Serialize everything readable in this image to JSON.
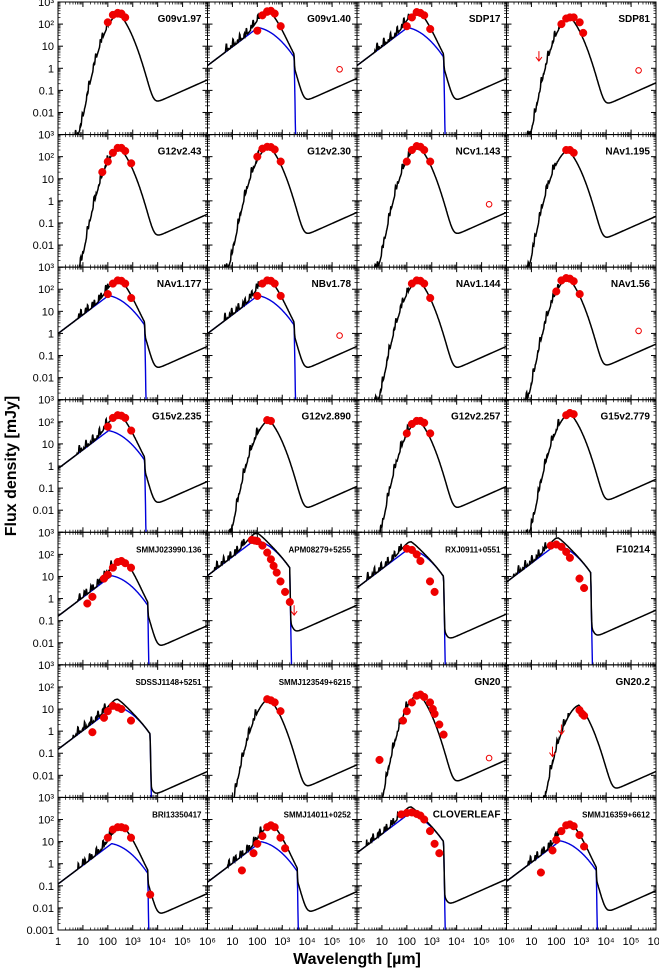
{
  "chart_data": {
    "type": "scatter",
    "layout": "7x4 grid of SED panels, log-log axes, shared axes",
    "xlabel": "Wavelength [µm]",
    "ylabel": "Flux density [mJy]",
    "xscale": "log",
    "yscale": "log",
    "xlim": [
      1,
      1000000
    ],
    "ylim": [
      0.001,
      1000
    ],
    "x_tick_labels": [
      "1",
      "10",
      "100",
      "10³",
      "10⁴",
      "10⁵",
      "10⁶"
    ],
    "y_tick_labels": [
      "0.001",
      "0.01",
      "0.1",
      "1",
      "10",
      "10²",
      "10³"
    ],
    "colors": {
      "model": "#000000",
      "agn": "#0000dd",
      "data": "#ee0000"
    },
    "panels": [
      {
        "name": "G09v1.97",
        "agn": false,
        "peak": [
          280,
          300
        ],
        "obs": [
          [
            100,
            120
          ],
          [
            160,
            260
          ],
          [
            250,
            300
          ],
          [
            350,
            280
          ],
          [
            500,
            200
          ],
          [
            250,
            320
          ],
          [
            350,
            300
          ]
        ],
        "open": [],
        "limits": []
      },
      {
        "name": "G09v1.40",
        "agn": true,
        "peak": [
          300,
          350
        ],
        "obs": [
          [
            100,
            50
          ],
          [
            160,
            250
          ],
          [
            250,
            380
          ],
          [
            350,
            400
          ],
          [
            500,
            300
          ],
          [
            870,
            80
          ],
          [
            250,
            360
          ]
        ],
        "open": [
          [
            200000,
            0.9
          ]
        ],
        "limits": []
      },
      {
        "name": "SDP17",
        "agn": true,
        "peak": [
          300,
          350
        ],
        "obs": [
          [
            100,
            80
          ],
          [
            160,
            200
          ],
          [
            250,
            350
          ],
          [
            350,
            320
          ],
          [
            500,
            250
          ],
          [
            870,
            60
          ]
        ],
        "open": [],
        "limits": []
      },
      {
        "name": "SDP81",
        "agn": false,
        "peak": [
          350,
          220
        ],
        "obs": [
          [
            160,
            100
          ],
          [
            250,
            180
          ],
          [
            350,
            200
          ],
          [
            500,
            200
          ],
          [
            870,
            120
          ],
          [
            1200,
            40
          ]
        ],
        "open": [
          [
            200000,
            0.8
          ]
        ],
        "limits": [
          [
            20,
            6
          ]
        ]
      },
      {
        "name": "G12v2.43",
        "agn": false,
        "peak": [
          300,
          250
        ],
        "obs": [
          [
            60,
            20
          ],
          [
            100,
            60
          ],
          [
            160,
            150
          ],
          [
            250,
            250
          ],
          [
            350,
            250
          ],
          [
            500,
            180
          ],
          [
            870,
            50
          ]
        ],
        "open": [],
        "limits": []
      },
      {
        "name": "G12v2.30",
        "agn": false,
        "peak": [
          300,
          300
        ],
        "obs": [
          [
            100,
            100
          ],
          [
            160,
            230
          ],
          [
            250,
            280
          ],
          [
            350,
            270
          ],
          [
            500,
            210
          ],
          [
            870,
            60
          ]
        ],
        "open": [],
        "limits": []
      },
      {
        "name": "NCv1.143",
        "agn": false,
        "peak": [
          300,
          300
        ],
        "obs": [
          [
            100,
            60
          ],
          [
            160,
            200
          ],
          [
            250,
            300
          ],
          [
            350,
            280
          ],
          [
            500,
            200
          ],
          [
            870,
            60
          ]
        ],
        "open": [
          [
            200000,
            0.7
          ]
        ],
        "limits": []
      },
      {
        "name": "NAv1.195",
        "agn": false,
        "peak": [
          300,
          200
        ],
        "obs": [
          [
            250,
            200
          ],
          [
            350,
            200
          ],
          [
            500,
            150
          ]
        ],
        "open": [],
        "limits": []
      },
      {
        "name": "NAv1.177",
        "agn": true,
        "peak": [
          300,
          260
        ],
        "obs": [
          [
            100,
            60
          ],
          [
            160,
            180
          ],
          [
            250,
            250
          ],
          [
            350,
            240
          ],
          [
            500,
            180
          ],
          [
            870,
            40
          ]
        ],
        "open": [],
        "limits": []
      },
      {
        "name": "NBv1.78",
        "agn": true,
        "peak": [
          300,
          260
        ],
        "obs": [
          [
            100,
            50
          ],
          [
            160,
            180
          ],
          [
            250,
            250
          ],
          [
            350,
            240
          ],
          [
            500,
            180
          ],
          [
            870,
            50
          ]
        ],
        "open": [
          [
            200000,
            0.8
          ]
        ],
        "limits": []
      },
      {
        "name": "NAv1.144",
        "agn": false,
        "peak": [
          300,
          260
        ],
        "obs": [
          [
            160,
            180
          ],
          [
            250,
            250
          ],
          [
            350,
            240
          ],
          [
            500,
            180
          ],
          [
            870,
            40
          ]
        ],
        "open": [],
        "limits": []
      },
      {
        "name": "NAv1.56",
        "agn": false,
        "peak": [
          300,
          330
        ],
        "obs": [
          [
            100,
            80
          ],
          [
            160,
            250
          ],
          [
            250,
            320
          ],
          [
            350,
            300
          ],
          [
            500,
            230
          ],
          [
            870,
            60
          ]
        ],
        "open": [
          [
            200000,
            1.3
          ]
        ],
        "limits": []
      },
      {
        "name": "G15v2.235",
        "agn": true,
        "peak": [
          300,
          200
        ],
        "obs": [
          [
            100,
            60
          ],
          [
            160,
            150
          ],
          [
            250,
            200
          ],
          [
            350,
            190
          ],
          [
            500,
            150
          ],
          [
            870,
            40
          ]
        ],
        "open": [],
        "limits": []
      },
      {
        "name": "G12v2.890",
        "agn": false,
        "peak": [
          300,
          120
        ],
        "obs": [
          [
            250,
            120
          ],
          [
            350,
            110
          ]
        ],
        "open": [],
        "limits": []
      },
      {
        "name": "G12v2.257",
        "agn": false,
        "peak": [
          300,
          120
        ],
        "obs": [
          [
            100,
            30
          ],
          [
            160,
            80
          ],
          [
            250,
            110
          ],
          [
            350,
            110
          ],
          [
            500,
            90
          ],
          [
            870,
            30
          ]
        ],
        "open": [],
        "limits": []
      },
      {
        "name": "G15v2.779",
        "agn": false,
        "peak": [
          350,
          250
        ],
        "obs": [
          [
            250,
            200
          ],
          [
            350,
            250
          ],
          [
            500,
            220
          ]
        ],
        "open": [],
        "limits": []
      },
      {
        "name": "SMMJ023990.136",
        "agn": true,
        "peak": [
          400,
          60
        ],
        "obs": [
          [
            15,
            0.6
          ],
          [
            24,
            1.2
          ],
          [
            70,
            8
          ],
          [
            100,
            12
          ],
          [
            160,
            25
          ],
          [
            250,
            45
          ],
          [
            350,
            50
          ],
          [
            500,
            40
          ],
          [
            850,
            25
          ]
        ],
        "open": [],
        "limits": []
      },
      {
        "name": "APM08279+5255",
        "agn": true,
        "peak": [
          100,
          500
        ],
        "obs": [
          [
            60,
            450
          ],
          [
            80,
            420
          ],
          [
            100,
            400
          ],
          [
            160,
            250
          ],
          [
            250,
            120
          ],
          [
            350,
            60
          ],
          [
            450,
            30
          ],
          [
            600,
            15
          ],
          [
            850,
            6
          ],
          [
            1300,
            2
          ],
          [
            2000,
            0.7
          ]
        ],
        "open": [],
        "limits": [
          [
            3000,
            0.5
          ]
        ]
      },
      {
        "name": "RXJ0911+0551",
        "agn": true,
        "peak": [
          150,
          200
        ],
        "obs": [
          [
            100,
            180
          ],
          [
            160,
            160
          ],
          [
            250,
            100
          ],
          [
            350,
            50
          ],
          [
            850,
            6
          ],
          [
            1300,
            2
          ]
        ],
        "open": [],
        "limits": []
      },
      {
        "name": "F10214",
        "agn": true,
        "peak": [
          120,
          300
        ],
        "obs": [
          [
            60,
            250
          ],
          [
            100,
            280
          ],
          [
            160,
            220
          ],
          [
            250,
            130
          ],
          [
            350,
            70
          ],
          [
            850,
            8
          ],
          [
            1300,
            3
          ]
        ],
        "open": [],
        "limits": []
      },
      {
        "name": "SDSSJ1148+5251",
        "agn": true,
        "peak": [
          250,
          15
        ],
        "obs": [
          [
            24,
            0.9
          ],
          [
            70,
            4
          ],
          [
            100,
            8
          ],
          [
            160,
            14
          ],
          [
            250,
            12
          ],
          [
            350,
            10
          ],
          [
            850,
            3
          ]
        ],
        "open": [],
        "limits": []
      },
      {
        "name": "SMMJ123549+6215",
        "agn": false,
        "peak": [
          300,
          30
        ],
        "obs": [
          [
            250,
            28
          ],
          [
            350,
            25
          ],
          [
            500,
            20
          ],
          [
            850,
            8
          ]
        ],
        "open": [],
        "limits": []
      },
      {
        "name": "GN20",
        "agn": false,
        "peak": [
          300,
          50
        ],
        "obs": [
          [
            8,
            0.05
          ],
          [
            70,
            3
          ],
          [
            100,
            8
          ],
          [
            160,
            20
          ],
          [
            250,
            40
          ],
          [
            350,
            45
          ],
          [
            500,
            35
          ],
          [
            850,
            20
          ],
          [
            1100,
            10
          ],
          [
            1300,
            6
          ],
          [
            2000,
            2
          ],
          [
            3000,
            0.7
          ]
        ],
        "open": [
          [
            200000,
            0.06
          ]
        ],
        "limits": []
      },
      {
        "name": "GN20.2",
        "agn": false,
        "peak": [
          800,
          15
        ],
        "obs": [
          [
            850,
            9
          ],
          [
            1100,
            6
          ],
          [
            1300,
            5
          ]
        ],
        "open": [],
        "limits": [
          [
            160,
            2
          ],
          [
            70,
            0.2
          ]
        ]
      },
      {
        "name": "BRI13350417",
        "agn": true,
        "peak": [
          400,
          45
        ],
        "obs": [
          [
            100,
            15
          ],
          [
            160,
            35
          ],
          [
            250,
            45
          ],
          [
            350,
            45
          ],
          [
            500,
            40
          ],
          [
            850,
            15
          ],
          [
            5000,
            0.04
          ]
        ],
        "open": [],
        "limits": []
      },
      {
        "name": "SMMJ14011+0252",
        "agn": true,
        "peak": [
          400,
          55
        ],
        "obs": [
          [
            24,
            0.5
          ],
          [
            70,
            3
          ],
          [
            100,
            8
          ],
          [
            160,
            18
          ],
          [
            250,
            45
          ],
          [
            350,
            55
          ],
          [
            500,
            45
          ],
          [
            850,
            15
          ],
          [
            1300,
            5
          ]
        ],
        "open": [],
        "limits": []
      },
      {
        "name": "CLOVERLEAF",
        "agn": true,
        "peak": [
          150,
          200
        ],
        "obs": [
          [
            60,
            170
          ],
          [
            100,
            200
          ],
          [
            160,
            210
          ],
          [
            250,
            180
          ],
          [
            350,
            150
          ],
          [
            500,
            100
          ],
          [
            850,
            30
          ],
          [
            1300,
            8
          ],
          [
            2000,
            3
          ]
        ],
        "open": [],
        "limits": []
      },
      {
        "name": "SMMJ16359+6612",
        "agn": true,
        "peak": [
          400,
          60
        ],
        "obs": [
          [
            24,
            0.4
          ],
          [
            70,
            4
          ],
          [
            100,
            12
          ],
          [
            160,
            30
          ],
          [
            250,
            55
          ],
          [
            350,
            60
          ],
          [
            500,
            50
          ],
          [
            850,
            20
          ],
          [
            1300,
            6
          ]
        ],
        "open": [],
        "limits": []
      }
    ]
  }
}
